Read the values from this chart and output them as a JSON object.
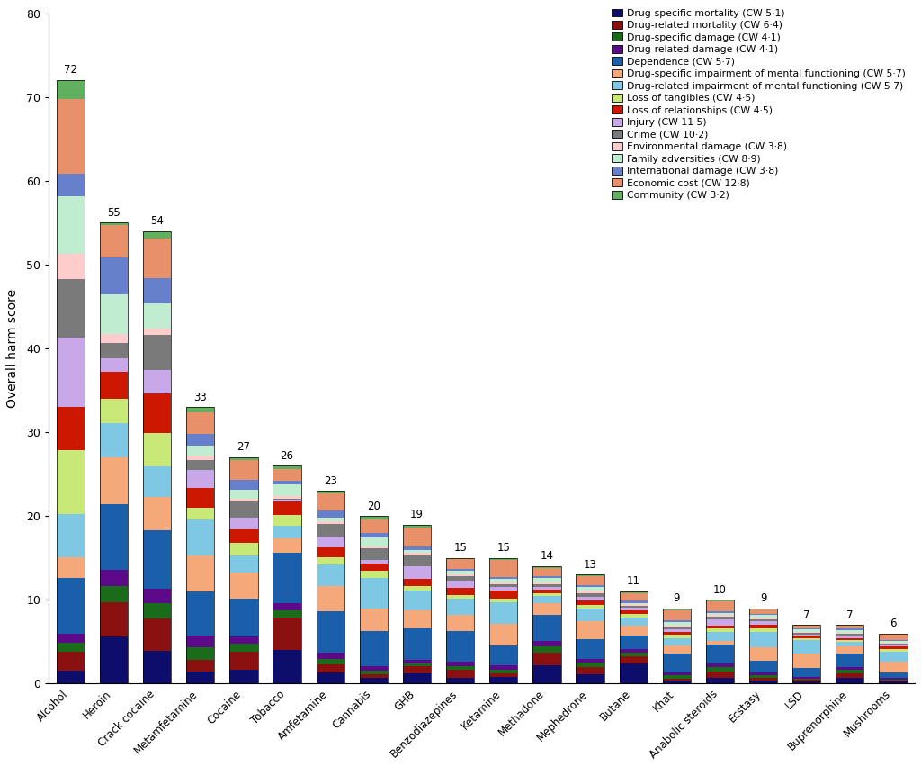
{
  "drugs": [
    "Alcohol",
    "Heroin",
    "Crack cocaine",
    "Metamfetamine",
    "Cocaine",
    "Tobacco",
    "Amfetamine",
    "Cannabis",
    "GHB",
    "Benzodiazepines",
    "Ketamine",
    "Methadone",
    "Mephedrone",
    "Butane",
    "Khat",
    "Anabolic steroids",
    "Ecstasy",
    "LSD",
    "Buprenorphine",
    "Mushrooms"
  ],
  "totals": [
    72,
    55,
    54,
    33,
    27,
    26,
    23,
    20,
    19,
    15,
    15,
    14,
    13,
    11,
    9,
    10,
    9,
    7,
    7,
    6
  ],
  "criteria": [
    "Drug-specific mortality (CW 5·1)",
    "Drug-related mortality (CW 6·4)",
    "Drug-specific damage (CW 4·1)",
    "Drug-related damage (CW 4·1)",
    "Dependence (CW 5·7)",
    "Drug-specific impairment of mental functioning (CW 5·7)",
    "Drug-related impairment of mental functioning (CW 5·7)",
    "Loss of tangibles (CW 4·5)",
    "Loss of relationships (CW 4·5)",
    "Injury (CW 11·5)",
    "Crime (CW 10·2)",
    "Environmental damage (CW 3·8)",
    "Family adversities (CW 8·9)",
    "International damage (CW 3·8)",
    "Economic cost (CW 12·8)",
    "Community (CW 3·2)"
  ],
  "colors": [
    "#0d0d6b",
    "#8b1010",
    "#1a6b1a",
    "#5c0a8a",
    "#1a5faa",
    "#f5a87a",
    "#7ec8e3",
    "#c8e878",
    "#cc1800",
    "#c8a8e8",
    "#7a7a7a",
    "#ffcccc",
    "#c0ecd0",
    "#6680cc",
    "#e8906a",
    "#60b060"
  ],
  "raw_data": {
    "Alcohol": [
      2.1,
      3.2,
      1.5,
      1.5,
      9.3,
      3.5,
      7.2,
      10.7,
      7.2,
      11.5,
      9.8,
      4.2,
      9.5,
      3.8,
      12.5,
      3.1
    ],
    "Heroin": [
      7.3,
      5.2,
      2.5,
      2.5,
      10.2,
      7.1,
      5.3,
      3.8,
      4.1,
      2.1,
      2.4,
      1.3,
      6.1,
      5.7,
      5.0,
      0.4
    ],
    "Crack cocaine": [
      5.0,
      5.1,
      2.3,
      2.3,
      9.0,
      5.1,
      4.7,
      5.2,
      6.1,
      3.7,
      5.3,
      1.0,
      4.0,
      3.8,
      6.1,
      1.2
    ],
    "Metamfetamine": [
      2.0,
      2.0,
      2.0,
      2.0,
      7.3,
      6.1,
      5.9,
      2.0,
      3.3,
      3.0,
      1.7,
      0.7,
      1.7,
      1.9,
      3.7,
      0.8
    ],
    "Cocaine": [
      2.8,
      3.8,
      1.6,
      1.6,
      7.8,
      5.4,
      3.5,
      2.5,
      2.9,
      2.3,
      3.4,
      0.6,
      1.8,
      2.1,
      4.1,
      0.5
    ],
    "Tobacco": [
      5.9,
      5.7,
      1.3,
      1.3,
      8.8,
      2.5,
      2.3,
      1.8,
      2.4,
      0.4,
      0.1,
      0.5,
      2.0,
      0.6,
      2.1,
      0.6
    ],
    "Amfetamine": [
      2.0,
      1.5,
      1.0,
      1.0,
      7.5,
      4.5,
      4.0,
      1.3,
      1.8,
      1.9,
      2.2,
      0.5,
      0.7,
      1.3,
      3.0,
      0.5
    ],
    "Cannabis": [
      1.0,
      0.7,
      0.7,
      0.7,
      6.3,
      4.0,
      5.5,
      1.3,
      1.3,
      0.7,
      2.0,
      0.4,
      1.6,
      0.7,
      2.5,
      0.6
    ],
    "GHB": [
      1.9,
      1.3,
      0.6,
      0.6,
      5.8,
      3.4,
      3.7,
      0.8,
      1.4,
      2.3,
      2.0,
      0.5,
      0.6,
      0.6,
      3.6,
      0.5
    ],
    "Benzodiazepines": [
      1.2,
      1.5,
      0.8,
      0.8,
      6.1,
      3.3,
      3.2,
      0.8,
      1.4,
      1.4,
      0.8,
      0.4,
      0.8,
      0.3,
      1.9,
      0.3
    ],
    "Ketamine": [
      1.3,
      0.7,
      0.8,
      0.8,
      3.9,
      4.3,
      4.3,
      0.7,
      1.5,
      0.7,
      0.6,
      0.3,
      0.8,
      0.3,
      3.4,
      0.4
    ],
    "Methadone": [
      3.8,
      2.7,
      1.2,
      1.2,
      5.3,
      2.4,
      1.6,
      0.6,
      0.7,
      0.6,
      0.4,
      0.4,
      0.9,
      0.5,
      1.7,
      0.3
    ],
    "Mephedrone": [
      1.9,
      1.5,
      0.8,
      0.8,
      4.1,
      3.6,
      2.5,
      0.8,
      0.9,
      0.7,
      0.8,
      0.4,
      0.8,
      0.4,
      1.8,
      0.3
    ],
    "Butane": [
      3.9,
      1.5,
      0.7,
      0.7,
      2.5,
      1.9,
      1.6,
      0.7,
      0.7,
      0.6,
      0.3,
      0.3,
      0.3,
      0.4,
      1.5,
      0.3
    ],
    "Khat": [
      0.5,
      0.4,
      0.5,
      0.5,
      3.2,
      1.5,
      1.1,
      0.6,
      0.6,
      0.4,
      0.3,
      0.3,
      0.6,
      0.4,
      1.7,
      0.3
    ],
    "Anabolic steroids": [
      1.2,
      1.3,
      0.9,
      0.9,
      3.8,
      0.9,
      1.8,
      0.7,
      0.7,
      1.3,
      0.4,
      0.4,
      0.5,
      0.3,
      2.0,
      0.4
    ],
    "Ecstasy": [
      0.6,
      0.5,
      0.5,
      0.5,
      2.1,
      2.6,
      2.8,
      0.7,
      0.7,
      0.6,
      0.4,
      0.3,
      0.5,
      0.3,
      0.7,
      0.3
    ],
    "LSD": [
      0.4,
      0.3,
      0.3,
      0.3,
      1.7,
      2.8,
      2.7,
      0.4,
      0.4,
      0.3,
      0.3,
      0.2,
      0.4,
      0.2,
      0.6,
      0.1
    ],
    "Buprenorphine": [
      1.3,
      1.1,
      0.8,
      0.8,
      3.2,
      1.7,
      1.1,
      0.4,
      0.4,
      0.6,
      0.4,
      0.3,
      0.5,
      0.4,
      0.7,
      0.2
    ],
    "Mushrooms": [
      0.3,
      0.2,
      0.2,
      0.2,
      1.0,
      1.7,
      1.7,
      0.4,
      0.4,
      0.3,
      0.2,
      0.1,
      0.3,
      0.2,
      1.0,
      0.1
    ]
  },
  "ylabel": "Overall harm score",
  "ylim": [
    0,
    80
  ],
  "yticks": [
    0,
    10,
    20,
    30,
    40,
    50,
    60,
    70,
    80
  ],
  "background_color": "#ffffff",
  "bar_width": 0.65
}
